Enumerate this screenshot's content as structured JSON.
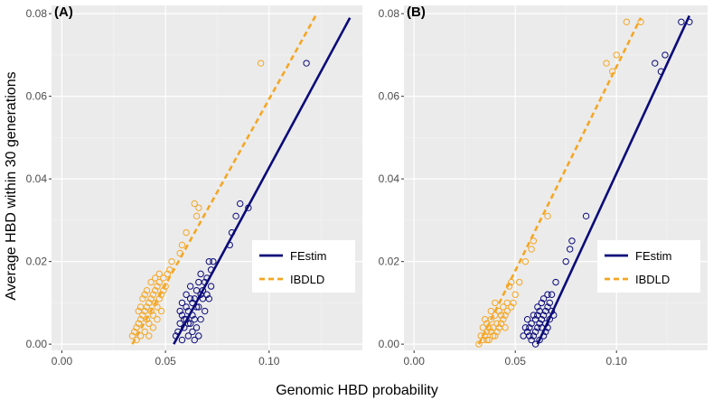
{
  "chart_data": [
    {
      "panel_label": "(A)",
      "type": "scatter",
      "xlim": [
        -0.005,
        0.145
      ],
      "ylim": [
        -0.0015,
        0.082
      ],
      "x_ticks": [
        0.0,
        0.05,
        0.1
      ],
      "x_tick_labels": [
        "0.00",
        "0.05",
        "0.10"
      ],
      "y_ticks": [
        0.0,
        0.02,
        0.04,
        0.06,
        0.08
      ],
      "y_tick_labels": [
        "0.00",
        "0.02",
        "0.04",
        "0.06",
        "0.08"
      ],
      "legend_position": "bottom-right",
      "series": [
        {
          "name": "FEstim",
          "color": "#0a0a7a",
          "line_style": "solid",
          "fit_line": {
            "x": [
              0.054,
              0.139
            ],
            "y": [
              0.0,
              0.079
            ]
          },
          "points": [
            [
              0.118,
              0.068
            ],
            [
              0.09,
              0.033
            ],
            [
              0.086,
              0.034
            ],
            [
              0.084,
              0.031
            ],
            [
              0.082,
              0.027
            ],
            [
              0.081,
              0.024
            ],
            [
              0.073,
              0.02
            ],
            [
              0.071,
              0.02
            ],
            [
              0.072,
              0.018
            ],
            [
              0.07,
              0.016
            ],
            [
              0.069,
              0.015
            ],
            [
              0.067,
              0.012
            ],
            [
              0.065,
              0.013
            ],
            [
              0.063,
              0.01
            ],
            [
              0.061,
              0.008
            ],
            [
              0.06,
              0.009
            ],
            [
              0.058,
              0.007
            ],
            [
              0.059,
              0.004
            ],
            [
              0.062,
              0.005
            ],
            [
              0.064,
              0.006
            ],
            [
              0.066,
              0.009
            ],
            [
              0.068,
              0.011
            ],
            [
              0.057,
              0.005
            ],
            [
              0.056,
              0.003
            ],
            [
              0.055,
              0.002
            ],
            [
              0.061,
              0.002
            ],
            [
              0.063,
              0.003
            ],
            [
              0.065,
              0.004
            ],
            [
              0.067,
              0.006
            ],
            [
              0.069,
              0.008
            ],
            [
              0.06,
              0.012
            ],
            [
              0.062,
              0.014
            ],
            [
              0.064,
              0.011
            ],
            [
              0.066,
              0.015
            ],
            [
              0.068,
              0.013
            ],
            [
              0.07,
              0.012
            ],
            [
              0.058,
              0.01
            ],
            [
              0.057,
              0.008
            ],
            [
              0.059,
              0.006
            ],
            [
              0.061,
              0.005
            ],
            [
              0.063,
              0.007
            ],
            [
              0.065,
              0.009
            ],
            [
              0.072,
              0.014
            ],
            [
              0.071,
              0.011
            ],
            [
              0.058,
              0.001
            ],
            [
              0.064,
              0.001
            ],
            [
              0.066,
              0.002
            ],
            [
              0.062,
              0.011
            ],
            [
              0.06,
              0.006
            ],
            [
              0.067,
              0.017
            ]
          ]
        },
        {
          "name": "IBDLD",
          "color": "#f5a623",
          "line_style": "dashed",
          "fit_line": {
            "x": [
              0.034,
              0.123
            ],
            "y": [
              0.0,
              0.08
            ]
          },
          "points": [
            [
              0.096,
              0.068
            ],
            [
              0.066,
              0.033
            ],
            [
              0.065,
              0.031
            ],
            [
              0.064,
              0.034
            ],
            [
              0.06,
              0.027
            ],
            [
              0.058,
              0.024
            ],
            [
              0.057,
              0.022
            ],
            [
              0.053,
              0.02
            ],
            [
              0.052,
              0.018
            ],
            [
              0.051,
              0.017
            ],
            [
              0.049,
              0.016
            ],
            [
              0.047,
              0.015
            ],
            [
              0.046,
              0.014
            ],
            [
              0.045,
              0.013
            ],
            [
              0.044,
              0.012
            ],
            [
              0.043,
              0.011
            ],
            [
              0.042,
              0.01
            ],
            [
              0.041,
              0.009
            ],
            [
              0.04,
              0.008
            ],
            [
              0.039,
              0.007
            ],
            [
              0.038,
              0.006
            ],
            [
              0.037,
              0.005
            ],
            [
              0.036,
              0.004
            ],
            [
              0.035,
              0.003
            ],
            [
              0.034,
              0.002
            ],
            [
              0.036,
              0.001
            ],
            [
              0.038,
              0.002
            ],
            [
              0.04,
              0.003
            ],
            [
              0.042,
              0.005
            ],
            [
              0.044,
              0.007
            ],
            [
              0.046,
              0.009
            ],
            [
              0.048,
              0.012
            ],
            [
              0.045,
              0.016
            ],
            [
              0.043,
              0.015
            ],
            [
              0.041,
              0.013
            ],
            [
              0.039,
              0.011
            ],
            [
              0.047,
              0.011
            ],
            [
              0.049,
              0.013
            ],
            [
              0.05,
              0.014
            ],
            [
              0.044,
              0.004
            ],
            [
              0.042,
              0.002
            ],
            [
              0.041,
              0.006
            ],
            [
              0.046,
              0.006
            ],
            [
              0.048,
              0.008
            ],
            [
              0.04,
              0.012
            ],
            [
              0.038,
              0.009
            ],
            [
              0.037,
              0.008
            ],
            [
              0.043,
              0.008
            ],
            [
              0.047,
              0.017
            ],
            [
              0.045,
              0.01
            ]
          ]
        }
      ]
    },
    {
      "panel_label": "(B)",
      "type": "scatter",
      "xlim": [
        -0.005,
        0.145
      ],
      "ylim": [
        -0.0015,
        0.082
      ],
      "x_ticks": [
        0.0,
        0.05,
        0.1
      ],
      "x_tick_labels": [
        "0.00",
        "0.05",
        "0.10"
      ],
      "y_ticks": [
        0.0,
        0.02,
        0.04,
        0.06,
        0.08
      ],
      "y_tick_labels": [
        "0.00",
        "0.02",
        "0.04",
        "0.06",
        "0.08"
      ],
      "legend_position": "bottom-right",
      "series": [
        {
          "name": "FEstim",
          "color": "#0a0a7a",
          "line_style": "solid",
          "fit_line": {
            "x": [
              0.061,
              0.136
            ],
            "y": [
              0.0,
              0.0795
            ]
          },
          "points": [
            [
              0.136,
              0.078
            ],
            [
              0.132,
              0.078
            ],
            [
              0.124,
              0.07
            ],
            [
              0.122,
              0.066
            ],
            [
              0.119,
              0.068
            ],
            [
              0.085,
              0.031
            ],
            [
              0.078,
              0.025
            ],
            [
              0.077,
              0.023
            ],
            [
              0.075,
              0.02
            ],
            [
              0.07,
              0.015
            ],
            [
              0.068,
              0.012
            ],
            [
              0.067,
              0.01
            ],
            [
              0.066,
              0.009
            ],
            [
              0.065,
              0.008
            ],
            [
              0.064,
              0.007
            ],
            [
              0.063,
              0.006
            ],
            [
              0.062,
              0.005
            ],
            [
              0.061,
              0.004
            ],
            [
              0.06,
              0.003
            ],
            [
              0.059,
              0.002
            ],
            [
              0.058,
              0.001
            ],
            [
              0.057,
              0.002
            ],
            [
              0.056,
              0.003
            ],
            [
              0.055,
              0.004
            ],
            [
              0.054,
              0.002
            ],
            [
              0.06,
              0.006
            ],
            [
              0.062,
              0.008
            ],
            [
              0.064,
              0.011
            ],
            [
              0.066,
              0.012
            ],
            [
              0.063,
              0.01
            ],
            [
              0.061,
              0.009
            ],
            [
              0.059,
              0.007
            ],
            [
              0.058,
              0.005
            ],
            [
              0.057,
              0.004
            ],
            [
              0.065,
              0.005
            ],
            [
              0.067,
              0.006
            ],
            [
              0.068,
              0.008
            ],
            [
              0.069,
              0.007
            ],
            [
              0.056,
              0.006
            ],
            [
              0.064,
              0.002
            ],
            [
              0.062,
              0.001
            ],
            [
              0.06,
              0.0
            ],
            [
              0.065,
              0.003
            ],
            [
              0.061,
              0.007
            ],
            [
              0.063,
              0.004
            ],
            [
              0.066,
              0.004
            ]
          ]
        },
        {
          "name": "IBDLD",
          "color": "#f5a623",
          "line_style": "dashed",
          "fit_line": {
            "x": [
              0.032,
              0.112
            ],
            "y": [
              0.0,
              0.079
            ]
          },
          "points": [
            [
              0.112,
              0.078
            ],
            [
              0.105,
              0.078
            ],
            [
              0.1,
              0.07
            ],
            [
              0.098,
              0.066
            ],
            [
              0.095,
              0.068
            ],
            [
              0.066,
              0.031
            ],
            [
              0.059,
              0.025
            ],
            [
              0.058,
              0.023
            ],
            [
              0.055,
              0.02
            ],
            [
              0.052,
              0.015
            ],
            [
              0.05,
              0.012
            ],
            [
              0.049,
              0.01
            ],
            [
              0.048,
              0.009
            ],
            [
              0.046,
              0.008
            ],
            [
              0.045,
              0.007
            ],
            [
              0.044,
              0.006
            ],
            [
              0.043,
              0.005
            ],
            [
              0.042,
              0.004
            ],
            [
              0.041,
              0.003
            ],
            [
              0.04,
              0.002
            ],
            [
              0.039,
              0.002
            ],
            [
              0.038,
              0.003
            ],
            [
              0.037,
              0.004
            ],
            [
              0.036,
              0.003
            ],
            [
              0.035,
              0.002
            ],
            [
              0.034,
              0.001
            ],
            [
              0.033,
              0.002
            ],
            [
              0.032,
              0.0
            ],
            [
              0.036,
              0.005
            ],
            [
              0.038,
              0.006
            ],
            [
              0.04,
              0.007
            ],
            [
              0.042,
              0.008
            ],
            [
              0.044,
              0.009
            ],
            [
              0.046,
              0.01
            ],
            [
              0.047,
              0.014
            ],
            [
              0.048,
              0.015
            ],
            [
              0.043,
              0.007
            ],
            [
              0.039,
              0.004
            ],
            [
              0.037,
              0.001
            ],
            [
              0.041,
              0.005
            ],
            [
              0.045,
              0.004
            ],
            [
              0.035,
              0.006
            ],
            [
              0.034,
              0.004
            ],
            [
              0.036,
              0.001
            ],
            [
              0.038,
              0.008
            ],
            [
              0.04,
              0.01
            ]
          ]
        }
      ]
    }
  ],
  "labels": {
    "ylabel": "Average HBD within 30 generations",
    "xlabel": "Genomic HBD probability"
  }
}
